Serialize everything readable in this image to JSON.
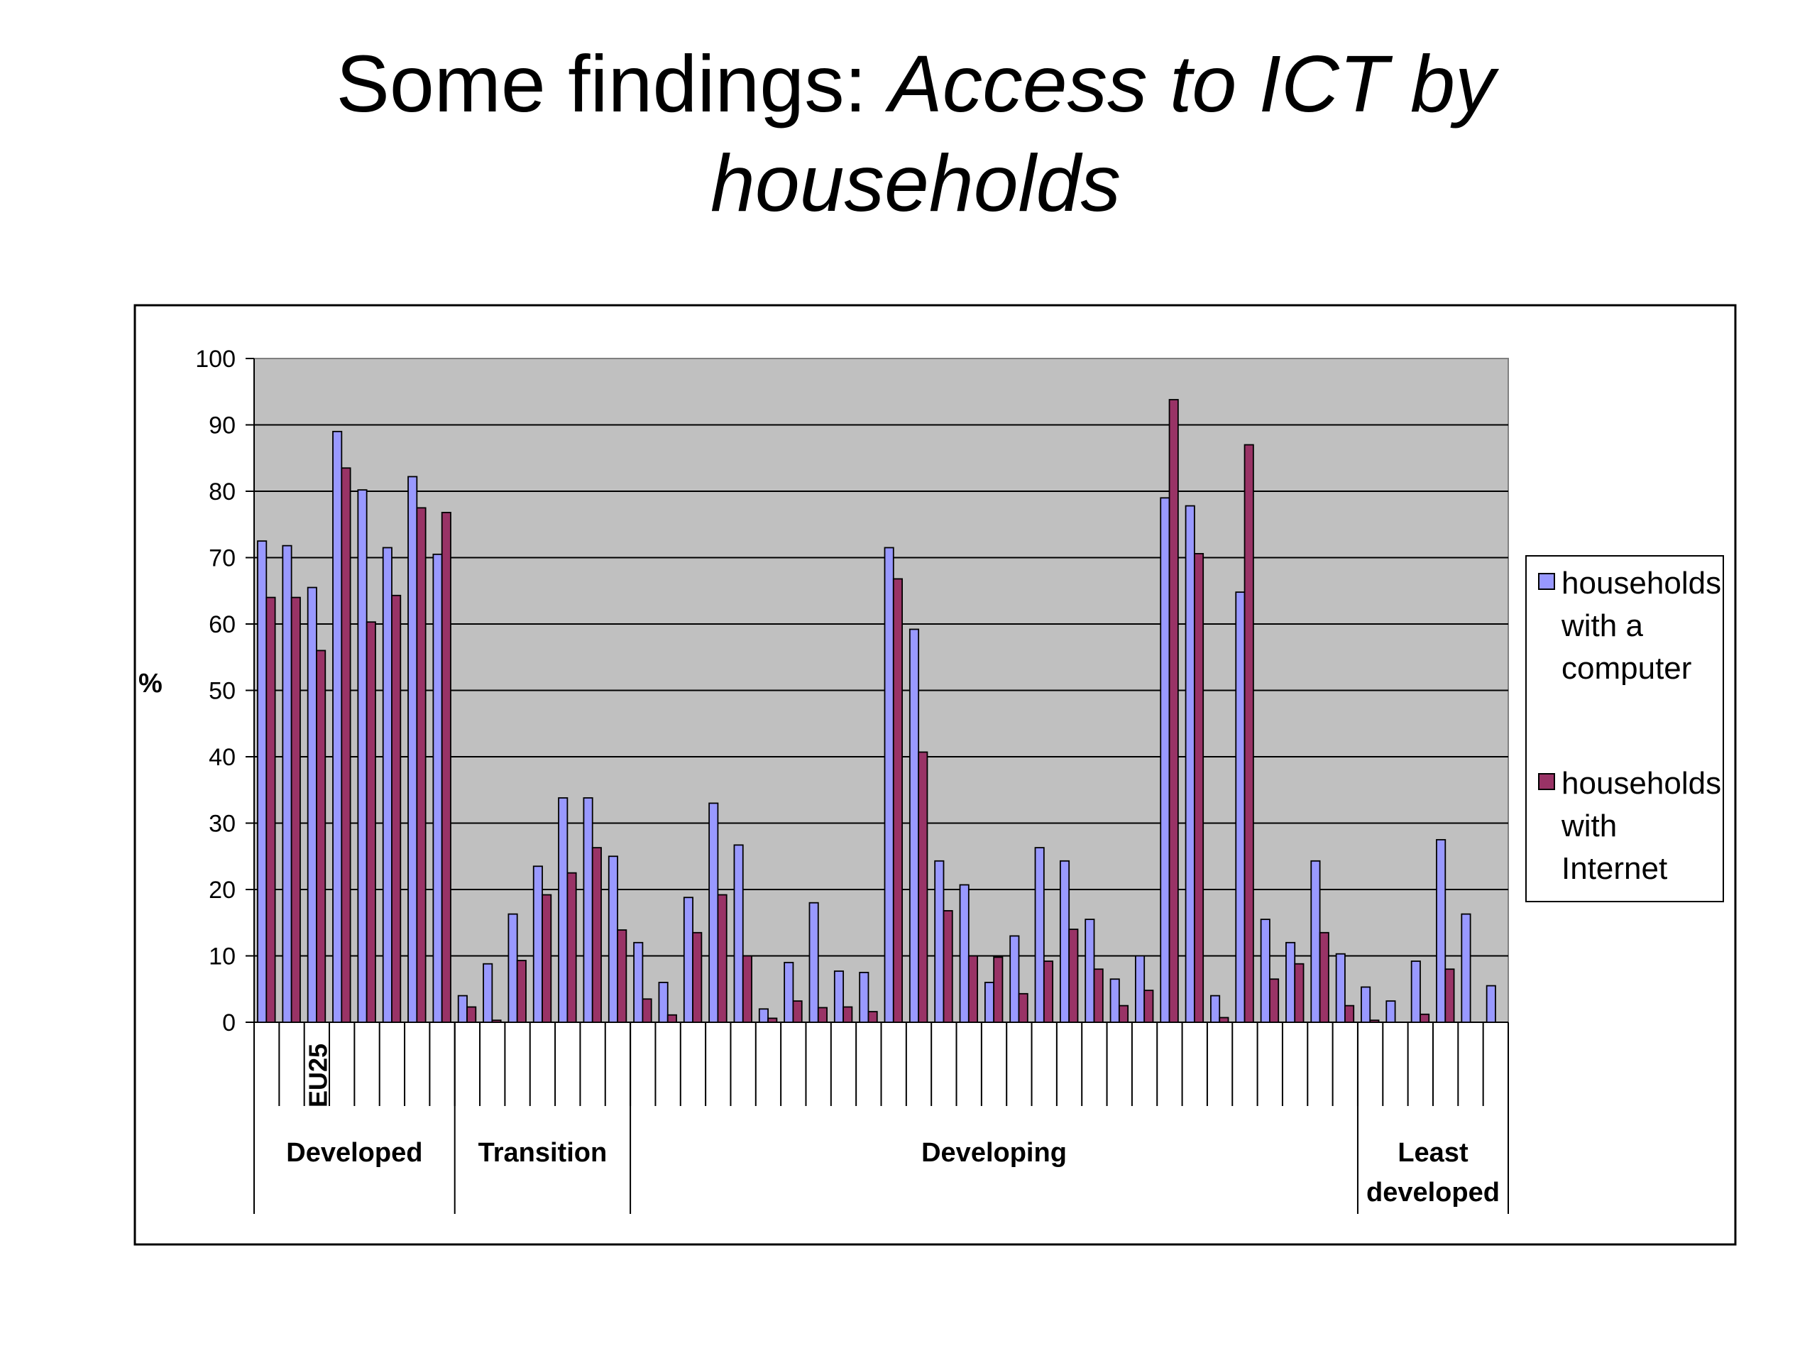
{
  "title": {
    "plain": "Some findings: ",
    "italic_line1": "Access to ICT by",
    "italic_line2": "households"
  },
  "chart_data": {
    "type": "bar",
    "ylabel": "%",
    "ylim": [
      0,
      100
    ],
    "yticks": [
      0,
      10,
      20,
      30,
      40,
      50,
      60,
      70,
      80,
      90,
      100
    ],
    "grid": true,
    "legend_position": "right",
    "category_label": "EU25",
    "category_label_index": 2,
    "groups": [
      {
        "label": "Developed",
        "count": 8
      },
      {
        "label": "Transition",
        "count": 7
      },
      {
        "label": "Developing",
        "count": 29
      },
      {
        "label": "Least developed",
        "label_lines": [
          "Least",
          "developed"
        ],
        "count": 6
      }
    ],
    "series": [
      {
        "name": "households with a computer",
        "legend_lines": [
          "households",
          "with a",
          "computer"
        ],
        "color": "#9999ff",
        "values": [
          72.5,
          71.8,
          65.5,
          89,
          80.2,
          71.5,
          82.2,
          70.5,
          4,
          8.8,
          16.3,
          23.5,
          33.8,
          33.8,
          25,
          12,
          6,
          18.8,
          33,
          26.7,
          2,
          9,
          18,
          7.7,
          7.5,
          71.5,
          59.2,
          24.3,
          20.7,
          6,
          13,
          26.3,
          24.3,
          15.5,
          6.5,
          10,
          79,
          77.8,
          4,
          64.8,
          15.5,
          12,
          24.3,
          10.3,
          5.3,
          3.2,
          9.2,
          27.5,
          16.3,
          5.5
        ]
      },
      {
        "name": "households with Internet",
        "legend_lines": [
          "households",
          "with",
          "Internet"
        ],
        "color": "#993366",
        "values": [
          64,
          64,
          56,
          83.5,
          60.3,
          64.3,
          77.5,
          76.8,
          2.3,
          0.3,
          9.3,
          19.2,
          22.5,
          26.3,
          13.9,
          3.5,
          1.1,
          13.5,
          19.2,
          10,
          0.6,
          3.2,
          2.2,
          2.3,
          1.6,
          66.8,
          40.7,
          16.8,
          10,
          9.8,
          4.3,
          9.2,
          14,
          8,
          2.5,
          4.8,
          93.8,
          70.6,
          0.7,
          87,
          6.5,
          8.8,
          13.5,
          2.5,
          0.3,
          0,
          1.2,
          8,
          0,
          0
        ]
      }
    ]
  }
}
